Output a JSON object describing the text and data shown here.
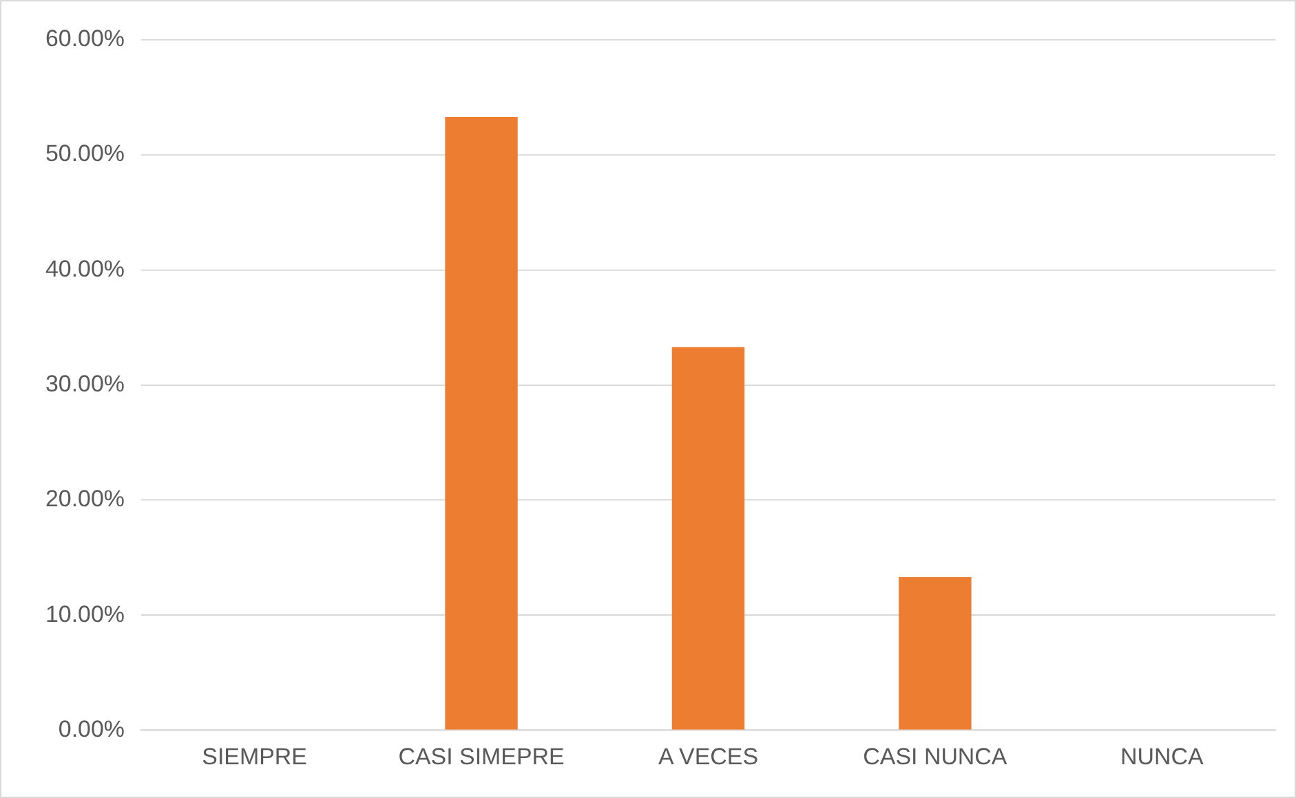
{
  "chart_data": {
    "type": "bar",
    "categories": [
      "SIEMPRE",
      "CASI SIMEPRE",
      "A VECES",
      "CASI NUNCA",
      "NUNCA"
    ],
    "values": [
      0,
      53.3,
      33.3,
      13.3,
      0
    ],
    "color": "#ed7d31",
    "ylim": [
      0,
      60
    ],
    "yticks": [
      {
        "value": 0,
        "label": "0.00%"
      },
      {
        "value": 10,
        "label": "10.00%"
      },
      {
        "value": 20,
        "label": "20.00%"
      },
      {
        "value": 30,
        "label": "30.00%"
      },
      {
        "value": 40,
        "label": "40.00%"
      },
      {
        "value": 50,
        "label": "50.00%"
      },
      {
        "value": 60,
        "label": "60.00%"
      }
    ],
    "grid": "y",
    "legend": false
  }
}
